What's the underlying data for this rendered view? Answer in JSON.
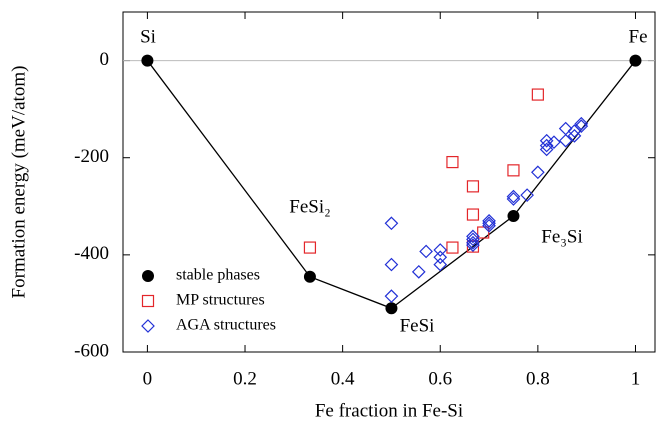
{
  "chart_data": {
    "type": "scatter",
    "xlabel": "Fe fraction in Fe-Si",
    "ylabel": "Formation energy (meV/atom)",
    "xlim": [
      -0.05,
      1.04
    ],
    "ylim": [
      -600,
      100
    ],
    "xticks": [
      0,
      0.2,
      0.4,
      0.6,
      0.8,
      1
    ],
    "yticks": [
      -600,
      -400,
      -200,
      0
    ],
    "legend": "lower left",
    "annotations": [
      "Si",
      "Fe",
      "FeSi₂",
      "FeSi",
      "Fe₃Si"
    ],
    "series": [
      {
        "name": "stable phases",
        "color": "#000000",
        "marker": "circle",
        "line": true,
        "x": [
          0,
          0.333,
          0.5,
          0.75,
          1
        ],
        "values": [
          0,
          -445,
          -510,
          -320,
          0
        ]
      },
      {
        "name": "MP structures",
        "color": "#e3262a",
        "marker": "square",
        "line": false,
        "x": [
          0.333,
          0.625,
          0.667,
          0.667,
          0.625,
          0.667,
          0.688,
          0.75,
          0.8
        ],
        "values": [
          -385,
          -209,
          -259,
          -317,
          -385,
          -383,
          -354,
          -226,
          -70
        ]
      },
      {
        "name": "AGA structures",
        "color": "#2231d6",
        "marker": "diamond",
        "line": false,
        "x": [
          0.5,
          0.5,
          0.5,
          0.556,
          0.571,
          0.6,
          0.6,
          0.6,
          0.667,
          0.667,
          0.667,
          0.667,
          0.7,
          0.7,
          0.7,
          0.75,
          0.75,
          0.778,
          0.8,
          0.818,
          0.818,
          0.818,
          0.833,
          0.857,
          0.857,
          0.875,
          0.875,
          0.889,
          0.889
        ],
        "values": [
          -335,
          -420,
          -485,
          -435,
          -393,
          -390,
          -405,
          -420,
          -362,
          -368,
          -375,
          -380,
          -330,
          -335,
          -340,
          -280,
          -285,
          -277,
          -230,
          -165,
          -175,
          -183,
          -168,
          -140,
          -165,
          -145,
          -155,
          -130,
          -135
        ]
      }
    ]
  }
}
